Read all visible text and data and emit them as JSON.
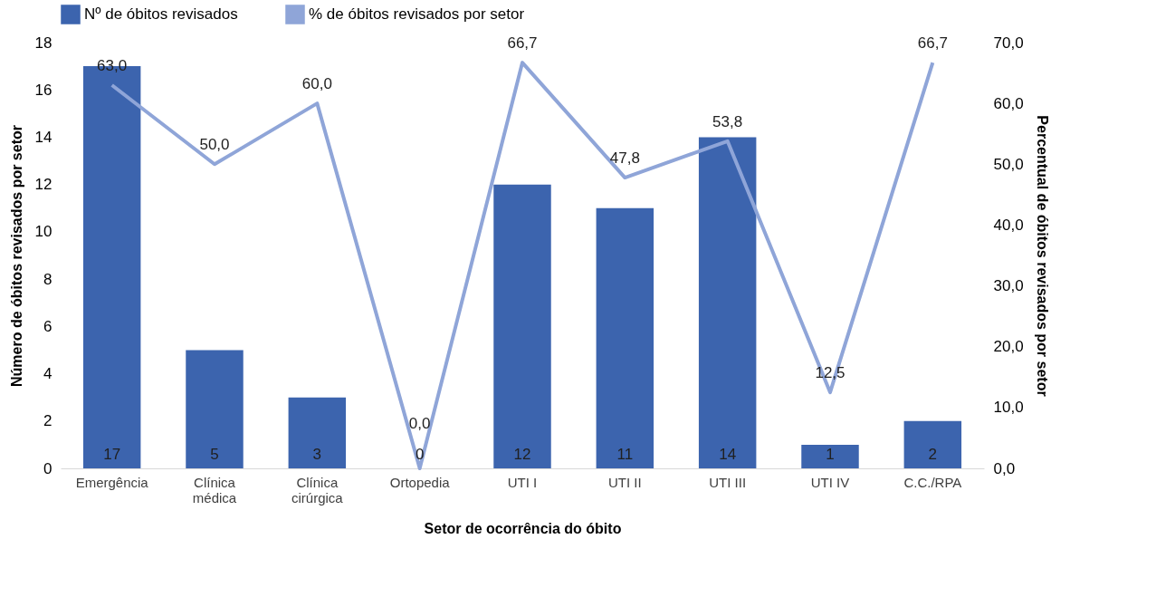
{
  "chart_data": {
    "type": "bar",
    "xlabel": "Setor de ocorrência do óbito",
    "ylabel": "Número de óbitos revisados por setor",
    "y2label": "Percentual de óbitos revisados por setor",
    "categories": [
      "Emergência",
      "Clínica médica",
      "Clínica cirúrgica",
      "Ortopedia",
      "UTI I",
      "UTI II",
      "UTI III",
      "UTI IV",
      "C.C./RPA"
    ],
    "ylim": [
      0,
      18
    ],
    "yticks": [
      0,
      2,
      4,
      6,
      8,
      10,
      12,
      14,
      16,
      18
    ],
    "y2lim": [
      0,
      70
    ],
    "y2ticks": [
      {
        "value": 0,
        "label": "0,0"
      },
      {
        "value": 10,
        "label": "10,0"
      },
      {
        "value": 20,
        "label": "20,0"
      },
      {
        "value": 30,
        "label": "30,0"
      },
      {
        "value": 40,
        "label": "40,0"
      },
      {
        "value": 50,
        "label": "50,0"
      },
      {
        "value": 60,
        "label": "60,0"
      },
      {
        "value": 70,
        "label": "70,0"
      }
    ],
    "grid": false,
    "legend": "top",
    "series": [
      {
        "name": "Nº de óbitos revisados",
        "color": "#3c64ae",
        "values": [
          17,
          5,
          3,
          0,
          12,
          11,
          14,
          1,
          2
        ],
        "value_labels": [
          "17",
          "5",
          "3",
          "0",
          "12",
          "11",
          "14",
          "1",
          "2"
        ]
      },
      {
        "name": "% de óbitos revisados por setor",
        "type": "line",
        "axis": "y2",
        "color": "#8fa5d8",
        "marker": "none",
        "line_style": "solid",
        "values": [
          63.0,
          50.0,
          60.0,
          0.0,
          66.7,
          47.8,
          53.8,
          12.5,
          66.7
        ],
        "value_labels": [
          "63,0",
          "50,0",
          "60,0",
          "0,0",
          "66,7",
          "47,8",
          "53,8",
          "12,5",
          "66,7"
        ]
      }
    ]
  }
}
